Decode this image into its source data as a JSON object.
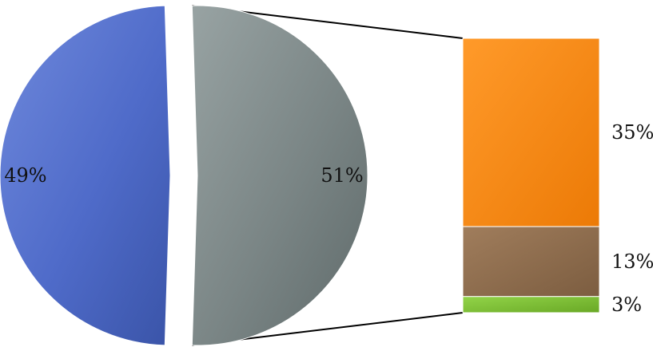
{
  "chart_data": {
    "type": "pie",
    "subtype": "bar-of-pie",
    "slices": [
      {
        "value": 49,
        "label": "49%",
        "color": "#4f6bc9"
      },
      {
        "value": 51,
        "label": "51%",
        "color": "#7a8585"
      }
    ],
    "breakdown": {
      "parent_slice": 1,
      "segments": [
        {
          "value": 35,
          "label": "35%",
          "color": "#f3840c"
        },
        {
          "value": 13,
          "label": "13%",
          "color": "#8a6a4b"
        },
        {
          "value": 3,
          "label": "3%",
          "color": "#7bbf2e"
        }
      ]
    },
    "title": "",
    "legend": "none"
  }
}
